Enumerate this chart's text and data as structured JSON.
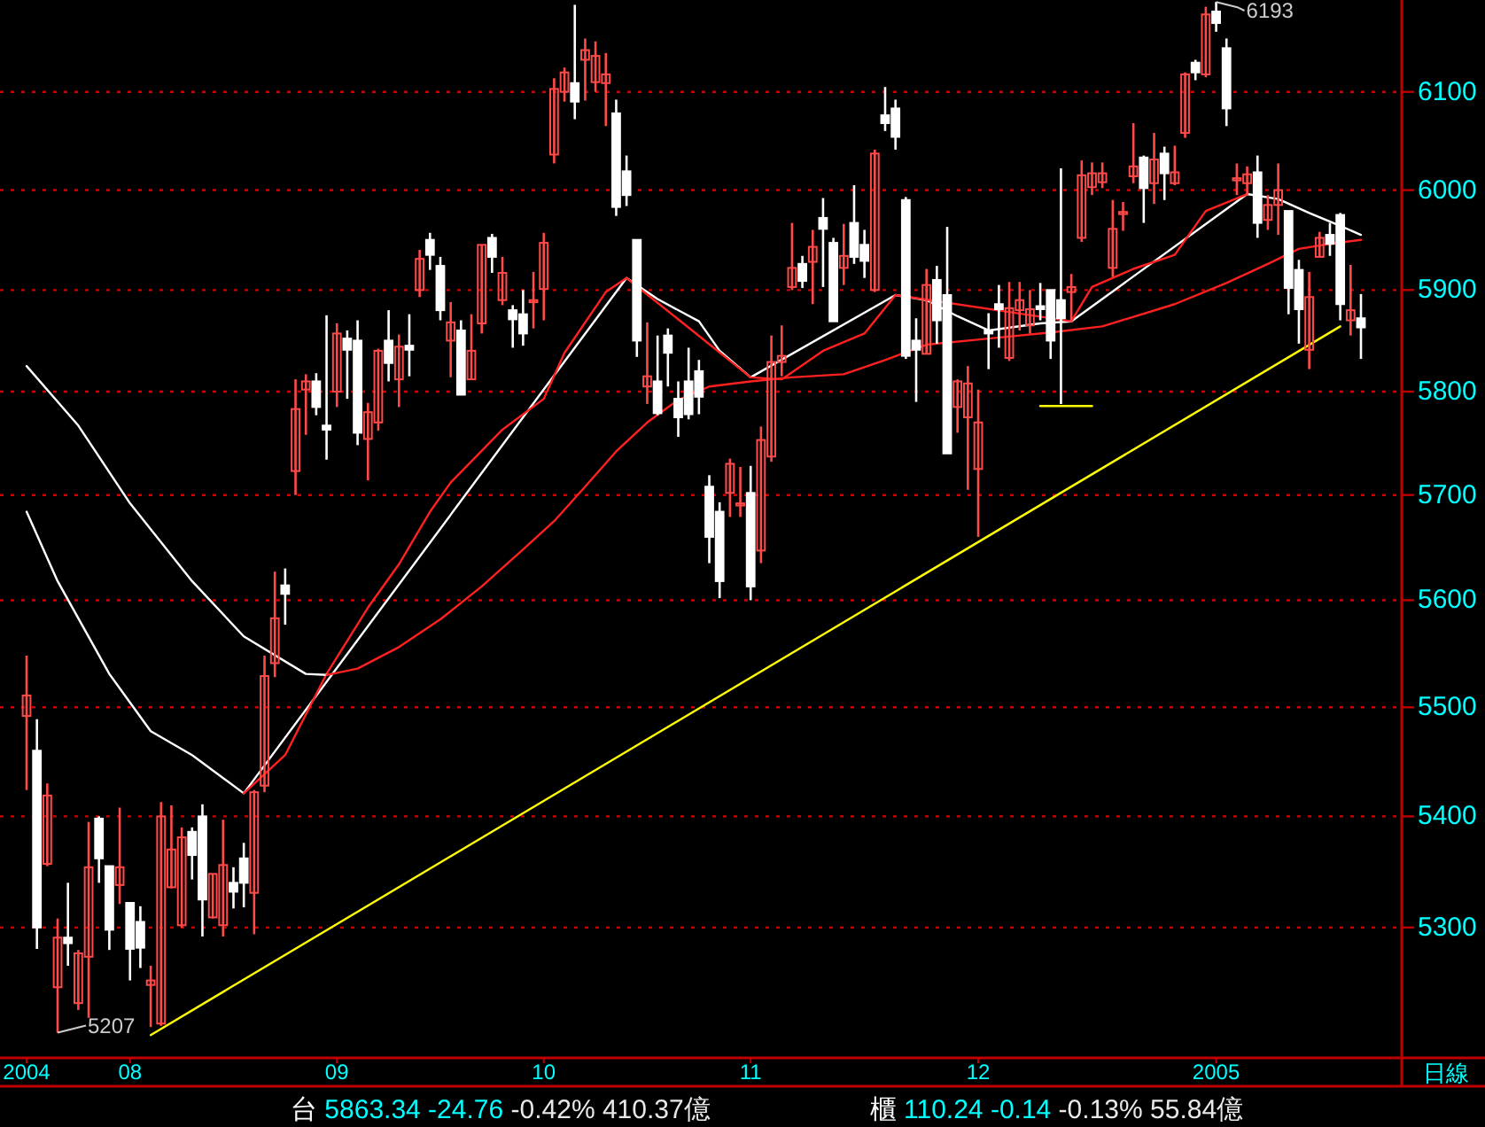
{
  "chart_data": {
    "type": "candlestick",
    "log": "y",
    "grid": "y",
    "ylim": [
      5185,
      6195
    ],
    "yticks": [
      5300,
      5400,
      5500,
      5600,
      5700,
      5800,
      5900,
      6000,
      6100
    ],
    "categories": [
      "2004",
      null,
      null,
      null,
      null,
      null,
      null,
      null,
      null,
      null,
      "08",
      null,
      null,
      null,
      null,
      null,
      null,
      null,
      null,
      null,
      null,
      null,
      null,
      null,
      null,
      null,
      null,
      null,
      null,
      null,
      "09",
      null,
      null,
      null,
      null,
      null,
      null,
      null,
      null,
      null,
      null,
      null,
      null,
      null,
      null,
      null,
      null,
      null,
      null,
      null,
      "10",
      null,
      null,
      null,
      null,
      null,
      null,
      null,
      null,
      null,
      null,
      null,
      null,
      null,
      null,
      null,
      null,
      null,
      null,
      null,
      "11",
      null,
      null,
      null,
      null,
      null,
      null,
      null,
      null,
      null,
      null,
      null,
      null,
      null,
      null,
      null,
      null,
      null,
      null,
      null,
      null,
      null,
      "12",
      null,
      null,
      null,
      null,
      null,
      null,
      null,
      null,
      null,
      null,
      null,
      null,
      null,
      null,
      null,
      null,
      null,
      null,
      null,
      null,
      null,
      null,
      "2005",
      null,
      null,
      null,
      null,
      null,
      null,
      null,
      null,
      null,
      null,
      null,
      null,
      null,
      null
    ],
    "ohlc": [
      [
        5492,
        5548,
        5424,
        5511
      ],
      [
        5460,
        5489,
        5281,
        5300
      ],
      [
        5357,
        5430,
        5355,
        5419
      ],
      [
        5247,
        5308,
        5207,
        5291
      ],
      [
        5291,
        5340,
        5266,
        5286
      ],
      [
        5233,
        5280,
        5227,
        5277
      ],
      [
        5274,
        5395,
        5220,
        5354
      ],
      [
        5398,
        5400,
        5340,
        5362
      ],
      [
        5355,
        5355,
        5280,
        5298
      ],
      [
        5338,
        5408,
        5321,
        5354
      ],
      [
        5322,
        5322,
        5253,
        5281
      ],
      [
        5305,
        5319,
        5264,
        5282
      ],
      [
        5249,
        5266,
        5212,
        5253
      ],
      [
        5215,
        5413,
        5213,
        5400
      ],
      [
        5336,
        5410,
        5335,
        5370
      ],
      [
        5302,
        5390,
        5300,
        5381
      ],
      [
        5386,
        5390,
        5343,
        5365
      ],
      [
        5400,
        5411,
        5292,
        5325
      ],
      [
        5309,
        5348,
        5308,
        5348
      ],
      [
        5302,
        5397,
        5292,
        5356
      ],
      [
        5340,
        5354,
        5317,
        5332
      ],
      [
        5362,
        5376,
        5318,
        5340
      ],
      [
        5331,
        5424,
        5294,
        5422
      ],
      [
        5428,
        5548,
        5422,
        5529
      ],
      [
        5541,
        5627,
        5528,
        5583
      ],
      [
        5614,
        5630,
        5577,
        5606
      ],
      [
        5723,
        5812,
        5700,
        5783
      ],
      [
        5802,
        5817,
        5758,
        5810
      ],
      [
        5810,
        5818,
        5777,
        5785
      ],
      [
        5767,
        5875,
        5734,
        5763
      ],
      [
        5800,
        5867,
        5785,
        5857
      ],
      [
        5852,
        5860,
        5793,
        5841
      ],
      [
        5850,
        5870,
        5748,
        5760
      ],
      [
        5754,
        5789,
        5714,
        5780
      ],
      [
        5770,
        5842,
        5762,
        5840
      ],
      [
        5850,
        5880,
        5810,
        5828
      ],
      [
        5812,
        5856,
        5785,
        5844
      ],
      [
        5845,
        5876,
        5815,
        5841
      ],
      [
        5900,
        5940,
        5893,
        5931
      ],
      [
        5950,
        5957,
        5920,
        5935
      ],
      [
        5924,
        5933,
        5870,
        5880
      ],
      [
        5850,
        5888,
        5814,
        5868
      ],
      [
        5860,
        5870,
        5797,
        5797
      ],
      [
        5812,
        5876,
        5812,
        5840
      ],
      [
        5867,
        5945,
        5857,
        5945
      ],
      [
        5952,
        5956,
        5917,
        5933
      ],
      [
        5890,
        5933,
        5885,
        5917
      ],
      [
        5880,
        5885,
        5843,
        5871
      ],
      [
        5876,
        5900,
        5845,
        5857
      ],
      [
        5888,
        5918,
        5862,
        5890
      ],
      [
        5901,
        5957,
        5870,
        5947
      ],
      [
        6036,
        6114,
        6027,
        6103
      ],
      [
        6100,
        6125,
        6090,
        6120
      ],
      [
        6109,
        6190,
        6072,
        6090
      ],
      [
        6133,
        6155,
        6091,
        6143
      ],
      [
        6110,
        6152,
        6100,
        6137
      ],
      [
        6109,
        6140,
        6065,
        6118
      ],
      [
        6078,
        6092,
        5974,
        5983
      ],
      [
        6019,
        6035,
        5984,
        5995
      ],
      [
        5950,
        5950,
        5834,
        5850
      ],
      [
        5805,
        5868,
        5788,
        5815
      ],
      [
        5810,
        5855,
        5777,
        5779
      ],
      [
        5855,
        5862,
        5805,
        5838
      ],
      [
        5793,
        5810,
        5756,
        5775
      ],
      [
        5810,
        5843,
        5773,
        5778
      ],
      [
        5820,
        5831,
        5778,
        5795
      ],
      [
        5708,
        5719,
        5635,
        5660
      ],
      [
        5684,
        5693,
        5602,
        5618
      ],
      [
        5702,
        5735,
        5679,
        5730
      ],
      [
        5690,
        5727,
        5679,
        5692
      ],
      [
        5702,
        5728,
        5600,
        5613
      ],
      [
        5647,
        5766,
        5635,
        5753
      ],
      [
        5737,
        5855,
        5732,
        5829
      ],
      [
        5829,
        5865,
        5815,
        5835
      ],
      [
        5903,
        5967,
        5900,
        5922
      ],
      [
        5926,
        5934,
        5902,
        5909
      ],
      [
        5928,
        5960,
        5886,
        5943
      ],
      [
        5972,
        5992,
        5903,
        5961
      ],
      [
        5947,
        5952,
        5869,
        5869
      ],
      [
        5922,
        5966,
        5905,
        5934
      ],
      [
        5967,
        6005,
        5926,
        5933
      ],
      [
        5945,
        5960,
        5912,
        5929
      ],
      [
        5900,
        6041,
        5898,
        6037
      ],
      [
        6076,
        6105,
        6060,
        6068
      ],
      [
        6083,
        6092,
        6041,
        6054
      ],
      [
        5990,
        5993,
        5832,
        5835
      ],
      [
        5850,
        5872,
        5790,
        5841
      ],
      [
        5837,
        5921,
        5837,
        5905
      ],
      [
        5910,
        5924,
        5847,
        5870
      ],
      [
        5895,
        5963,
        5740,
        5740
      ],
      [
        5785,
        5812,
        5760,
        5810
      ],
      [
        5775,
        5825,
        5705,
        5808
      ],
      [
        5725,
        5802,
        5660,
        5770
      ],
      [
        5860,
        5877,
        5822,
        5857
      ],
      [
        5886,
        5905,
        5843,
        5881
      ],
      [
        5833,
        5908,
        5830,
        5882
      ],
      [
        5880,
        5908,
        5860,
        5890
      ],
      [
        5865,
        5900,
        5857,
        5881
      ],
      [
        5884,
        5907,
        5870,
        5881
      ],
      [
        5900,
        5900,
        5832,
        5850
      ],
      [
        5890,
        6022,
        5788,
        5872
      ],
      [
        5898,
        5916,
        5868,
        5903
      ],
      [
        5952,
        6030,
        5948,
        6015
      ],
      [
        6003,
        6028,
        5995,
        6017
      ],
      [
        6008,
        6028,
        6002,
        6017
      ],
      [
        5922,
        5990,
        5913,
        5961
      ],
      [
        5976,
        5988,
        5959,
        5978
      ],
      [
        6014,
        6068,
        6007,
        6024
      ],
      [
        6033,
        6035,
        5967,
        6002
      ],
      [
        6007,
        6058,
        5986,
        6031
      ],
      [
        6037,
        6044,
        5990,
        6017
      ],
      [
        6007,
        6045,
        6005,
        6018
      ],
      [
        6058,
        6120,
        6053,
        6118
      ],
      [
        6130,
        6133,
        6112,
        6120
      ],
      [
        6118,
        6188,
        6115,
        6180
      ],
      [
        6183,
        6193,
        6162,
        6171
      ],
      [
        6145,
        6155,
        6065,
        6083
      ],
      [
        6010,
        6027,
        5995,
        6012
      ],
      [
        6007,
        6024,
        5995,
        6016
      ],
      [
        6018,
        6035,
        5952,
        5967
      ],
      [
        5970,
        5995,
        5960,
        5985
      ],
      [
        5985,
        6027,
        5955,
        6000
      ],
      [
        5979,
        5979,
        5876,
        5902
      ],
      [
        5920,
        5930,
        5847,
        5881
      ],
      [
        5841,
        5918,
        5822,
        5893
      ],
      [
        5933,
        5958,
        5933,
        5952
      ],
      [
        5955,
        5967,
        5934,
        5946
      ],
      [
        5975,
        5977,
        5870,
        5886
      ],
      [
        5870,
        5925,
        5855,
        5880
      ],
      [
        5872,
        5896,
        5832,
        5863
      ]
    ],
    "series": [
      {
        "type": "line",
        "color": "#ffffff",
        "values": [
          5684,
          null,
          null,
          5618,
          null,
          null,
          null,
          null,
          5531,
          null,
          null,
          null,
          5478,
          null,
          null,
          null,
          5456,
          null,
          null,
          null,
          null,
          5421,
          null,
          null,
          null,
          null,
          null,
          null,
          null,
          null,
          null,
          null,
          null,
          null,
          null,
          null,
          null,
          null,
          null,
          null,
          null,
          null,
          null,
          null,
          null,
          null,
          null,
          null,
          null,
          null,
          null,
          null,
          null,
          null,
          null,
          null,
          null,
          null,
          5912,
          null,
          null,
          5891,
          null,
          null,
          null,
          5869,
          null,
          5840,
          null,
          null,
          5814,
          null,
          null,
          null,
          null,
          null,
          null,
          null,
          null,
          null,
          null,
          null,
          null,
          null,
          5895,
          null,
          null,
          5890,
          null,
          null,
          5874,
          null,
          null,
          5860,
          null,
          null,
          null,
          null,
          5867,
          null,
          null,
          5869,
          null,
          null,
          null,
          null,
          null,
          null,
          null,
          null,
          null,
          null,
          null,
          null,
          null,
          null,
          null,
          null,
          5996,
          null,
          null,
          5991,
          null,
          null,
          5977,
          null,
          null,
          5964,
          null,
          5955
        ]
      },
      {
        "type": "line",
        "color": "#ff2020",
        "values": [
          null,
          null,
          null,
          null,
          null,
          null,
          null,
          null,
          null,
          null,
          null,
          null,
          null,
          null,
          null,
          null,
          null,
          null,
          null,
          null,
          null,
          5421,
          null,
          null,
          null,
          5456,
          null,
          null,
          null,
          5531,
          null,
          null,
          null,
          5593,
          null,
          null,
          5634,
          null,
          null,
          5684,
          null,
          5712,
          null,
          null,
          null,
          null,
          5763,
          null,
          null,
          null,
          5793,
          null,
          5838,
          null,
          null,
          null,
          5898,
          null,
          5912,
          null,
          null,
          null,
          null,
          null,
          null,
          null,
          null,
          null,
          null,
          null,
          5814,
          null,
          null,
          5812,
          null,
          null,
          null,
          5840,
          null,
          null,
          null,
          5857,
          null,
          null,
          5895,
          null,
          null,
          null,
          null,
          null,
          null,
          null,
          null,
          null,
          null,
          null,
          null,
          null,
          null,
          null,
          null,
          5869,
          null,
          5903,
          null,
          null,
          null,
          5921,
          null,
          null,
          null,
          5935,
          null,
          null,
          5979,
          null,
          null,
          null,
          5996,
          null,
          null,
          null,
          null,
          null,
          null,
          null,
          null,
          null,
          null,
          null
        ]
      },
      {
        "type": "line",
        "color": "#ffffff",
        "values": [
          5825,
          null,
          null,
          null,
          null,
          5767,
          null,
          null,
          null,
          null,
          5692,
          null,
          null,
          null,
          null,
          null,
          5618,
          null,
          null,
          null,
          null,
          5566,
          null,
          null,
          null,
          null,
          null,
          5531,
          null,
          5530,
          null,
          null,
          null,
          null,
          null,
          null,
          null,
          null,
          null,
          null,
          null,
          null,
          null,
          null,
          null,
          null,
          null,
          null,
          null,
          null,
          null,
          null,
          null,
          null,
          null,
          null,
          null,
          null,
          null,
          null,
          null,
          null,
          null,
          null,
          null,
          null,
          null,
          null,
          null,
          null,
          null,
          null,
          null,
          null,
          null,
          null,
          null,
          null,
          null,
          null,
          null,
          null,
          null,
          null,
          null,
          null,
          null,
          null,
          null,
          null,
          null,
          null,
          null,
          null,
          null,
          null,
          null,
          null,
          null,
          null,
          null,
          null,
          null,
          null,
          null,
          null,
          null,
          null,
          null,
          null,
          null,
          null,
          null,
          null,
          null,
          null,
          null,
          null,
          null,
          null,
          null,
          null,
          null,
          null,
          null,
          null,
          null,
          null,
          null,
          null
        ]
      },
      {
        "type": "line",
        "color": "#ff2020",
        "values": [
          null,
          null,
          null,
          null,
          null,
          null,
          null,
          null,
          null,
          null,
          null,
          null,
          null,
          null,
          null,
          null,
          null,
          null,
          null,
          null,
          null,
          null,
          null,
          null,
          null,
          null,
          null,
          null,
          null,
          5530,
          null,
          null,
          5536,
          null,
          null,
          null,
          5556,
          null,
          null,
          null,
          5582,
          null,
          null,
          null,
          5613,
          null,
          null,
          null,
          5648,
          null,
          null,
          5675,
          null,
          null,
          5708,
          null,
          null,
          5742,
          null,
          null,
          5770,
          null,
          null,
          5792,
          null,
          null,
          5805,
          null,
          null,
          null,
          5810,
          null,
          null,
          null,
          5814,
          null,
          null,
          null,
          null,
          5817,
          null,
          null,
          null,
          5831,
          null,
          null,
          null,
          5846,
          null,
          null,
          null,
          null,
          null,
          5852,
          null,
          null,
          null,
          null,
          null,
          5858,
          null,
          null,
          null,
          null,
          5864,
          null,
          null,
          null,
          null,
          null,
          null,
          5886,
          null,
          null,
          null,
          null,
          5907,
          null,
          null,
          null,
          5926,
          null,
          null,
          5941,
          null,
          null,
          5946,
          null,
          null,
          5950
        ]
      },
      {
        "type": "line",
        "color": "#ffff00",
        "values": [
          null,
          null,
          null,
          null,
          null,
          null,
          null,
          null,
          null,
          null,
          null,
          null,
          5205,
          null,
          null,
          null,
          null,
          null,
          null,
          null,
          null,
          null,
          null,
          null,
          null,
          null,
          null,
          null,
          null,
          null,
          null,
          null,
          null,
          null,
          null,
          null,
          null,
          null,
          null,
          null,
          null,
          null,
          null,
          null,
          null,
          null,
          null,
          null,
          null,
          null,
          null,
          null,
          null,
          null,
          null,
          null,
          null,
          null,
          null,
          null,
          null,
          null,
          null,
          null,
          null,
          null,
          null,
          null,
          null,
          null,
          null,
          null,
          null,
          null,
          null,
          null,
          null,
          null,
          null,
          null,
          null,
          null,
          null,
          null,
          null,
          null,
          null,
          null,
          null,
          null,
          null,
          null,
          null,
          null,
          null,
          null,
          null,
          null,
          null,
          null,
          null,
          null,
          null,
          null,
          null,
          null,
          null,
          null,
          null,
          null,
          null,
          null,
          null,
          null,
          null,
          null,
          null,
          null,
          null,
          null,
          null,
          null,
          null,
          null,
          null,
          null,
          null,
          5864,
          null,
          null
        ]
      },
      {
        "type": "line",
        "color": "#ffff00",
        "values": [
          null,
          null,
          null,
          null,
          null,
          null,
          null,
          null,
          null,
          null,
          null,
          null,
          null,
          null,
          null,
          null,
          null,
          null,
          null,
          null,
          null,
          null,
          null,
          null,
          null,
          null,
          null,
          null,
          null,
          null,
          null,
          null,
          null,
          null,
          null,
          null,
          null,
          null,
          null,
          null,
          null,
          null,
          null,
          null,
          null,
          null,
          null,
          null,
          null,
          null,
          null,
          null,
          null,
          null,
          null,
          null,
          null,
          null,
          null,
          null,
          null,
          null,
          null,
          null,
          null,
          null,
          null,
          null,
          null,
          null,
          null,
          null,
          null,
          null,
          null,
          null,
          null,
          null,
          null,
          null,
          null,
          null,
          null,
          null,
          null,
          null,
          null,
          null,
          null,
          null,
          null,
          null,
          null,
          null,
          null,
          null,
          null,
          null,
          5786,
          null,
          null,
          null,
          null,
          5786,
          null,
          null,
          null,
          null,
          null,
          null,
          null,
          null,
          null,
          null,
          null,
          null,
          null,
          null,
          null,
          null,
          null,
          null,
          null,
          null,
          null,
          null,
          null,
          null,
          null,
          null
        ]
      }
    ],
    "annotations": [
      "5207",
      "6193",
      "日線",
      "台 5863.34 -24.76 -0.42% 410.37億",
      "櫃 110.24 -0.14 -0.13% 55.84億"
    ]
  }
}
